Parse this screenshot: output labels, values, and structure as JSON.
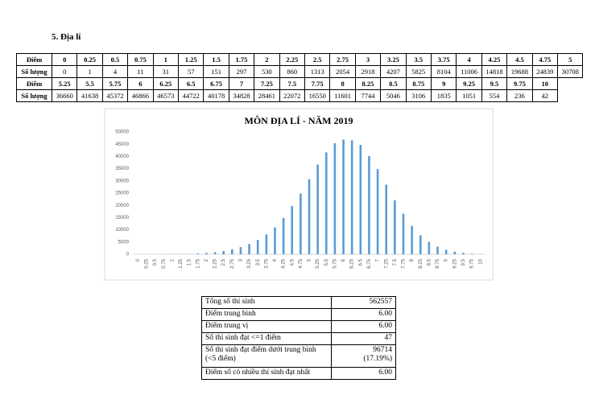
{
  "section_title": "5.  Địa lí",
  "score_table": {
    "row_labels": [
      "Điểm",
      "Số lượng"
    ]
  },
  "chart_data": {
    "type": "bar",
    "title": "MÔN ĐỊA LÍ - NĂM 2019",
    "categories": [
      "0",
      "0.25",
      "0.5",
      "0.75",
      "1",
      "1.25",
      "1.5",
      "1.75",
      "2",
      "2.25",
      "2.5",
      "2.75",
      "3",
      "3.25",
      "3.5",
      "3.75",
      "4",
      "4.25",
      "4.5",
      "4.75",
      "5",
      "5.25",
      "5.5",
      "5.75",
      "6",
      "6.25",
      "6.5",
      "6.75",
      "7",
      "7.25",
      "7.5",
      "7.75",
      "8",
      "8.25",
      "8.5",
      "8.75",
      "9",
      "9.25",
      "9.5",
      "9.75",
      "10"
    ],
    "values": [
      0,
      1,
      4,
      11,
      31,
      57,
      151,
      297,
      530,
      860,
      1313,
      2054,
      2918,
      4207,
      5825,
      8104,
      11006,
      14818,
      19688,
      24839,
      30708,
      36660,
      41638,
      45372,
      46866,
      46573,
      44722,
      40178,
      34828,
      28461,
      22072,
      16550,
      11601,
      7744,
      5046,
      3106,
      1835,
      1051,
      554,
      236,
      42
    ],
    "color": "#5b9bd5",
    "ylim": [
      0,
      50000
    ],
    "yticks": [
      0,
      5000,
      10000,
      15000,
      20000,
      25000,
      30000,
      35000,
      40000,
      45000,
      50000
    ]
  },
  "summary_table": {
    "rows": [
      [
        "Tổng số thí sinh",
        "562557"
      ],
      [
        "Điểm trung bình",
        "6.00"
      ],
      [
        "Điểm trung vị",
        "6.00"
      ],
      [
        "Số thí sinh đạt <=1 điểm",
        "47"
      ],
      [
        "Số thí sinh đạt điểm dưới trung bình (<5 điểm)",
        "96714",
        "(17.19%)"
      ],
      [
        "Điểm số có nhiều thí sinh đạt nhất",
        "6.00"
      ]
    ]
  }
}
